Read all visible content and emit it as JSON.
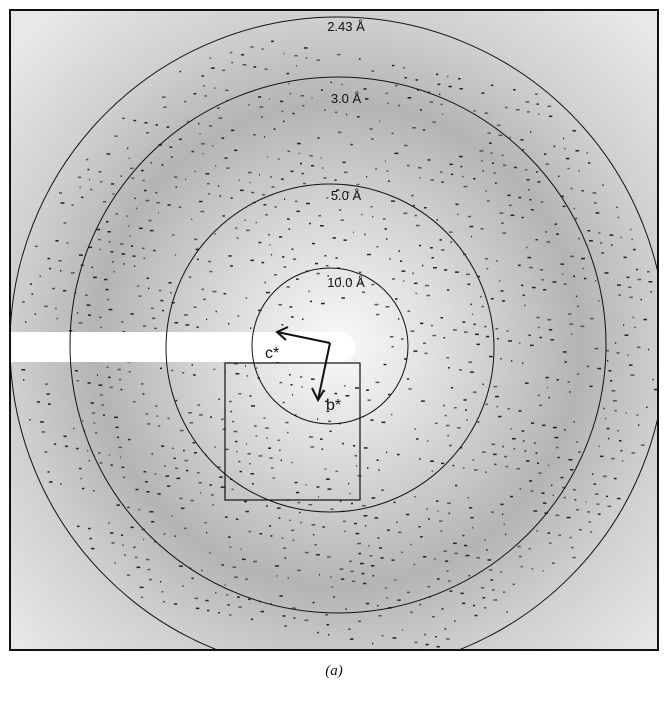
{
  "rings": [
    {
      "label": "2.43 Å"
    },
    {
      "label": "3.0 Å"
    },
    {
      "label": "5.0 Å"
    },
    {
      "label": "10.0 Å"
    }
  ],
  "axes": {
    "c": "c*",
    "b": "b*"
  },
  "caption": "(a)"
}
